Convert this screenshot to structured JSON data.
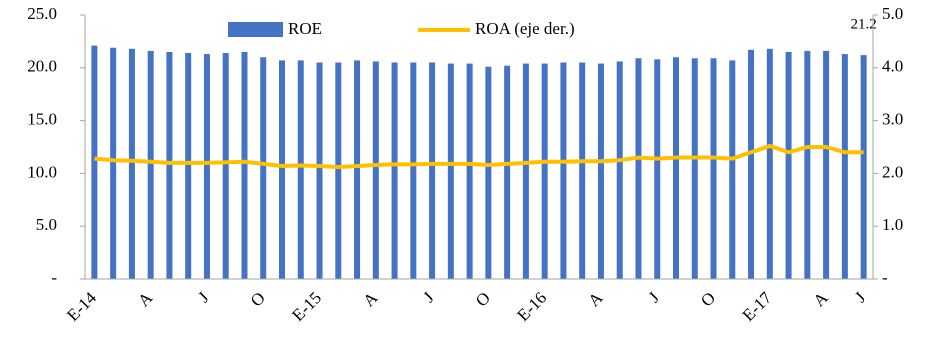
{
  "chart_data": {
    "type": "bar_line",
    "categories": [
      "E-14",
      null,
      null,
      "A",
      null,
      null,
      "J",
      null,
      null,
      "O",
      null,
      null,
      "E-15",
      null,
      null,
      "A",
      null,
      null,
      "J",
      null,
      null,
      "O",
      null,
      null,
      "E-16",
      null,
      null,
      "A",
      null,
      null,
      "J",
      null,
      null,
      "O",
      null,
      null,
      "E-17",
      null,
      null,
      "A",
      null,
      "J"
    ],
    "series": [
      {
        "name": "ROE",
        "color": "#4472c4",
        "type": "bar",
        "values": [
          22.1,
          21.9,
          21.8,
          21.6,
          21.5,
          21.4,
          21.3,
          21.4,
          21.5,
          21.0,
          20.7,
          20.7,
          20.5,
          20.5,
          20.7,
          20.6,
          20.5,
          20.5,
          20.5,
          20.4,
          20.4,
          20.1,
          20.2,
          20.4,
          20.4,
          20.5,
          20.5,
          20.4,
          20.6,
          20.9,
          20.8,
          21.0,
          20.9,
          20.9,
          20.7,
          21.7,
          21.8,
          21.5,
          21.6,
          21.6,
          21.3,
          21.2
        ],
        "value_labels": [
          null,
          null,
          null,
          null,
          null,
          null,
          null,
          null,
          null,
          null,
          null,
          null,
          null,
          null,
          null,
          null,
          null,
          null,
          null,
          null,
          null,
          null,
          null,
          null,
          null,
          null,
          null,
          null,
          null,
          null,
          null,
          null,
          null,
          null,
          null,
          null,
          null,
          null,
          null,
          null,
          null,
          "21.2"
        ]
      },
      {
        "name": "ROA (eje der.)",
        "color": "#ffc000",
        "type": "line",
        "axis": "y2",
        "values": [
          2.28,
          2.25,
          2.24,
          2.22,
          2.2,
          2.2,
          2.2,
          2.21,
          2.22,
          2.18,
          2.14,
          2.15,
          2.14,
          2.12,
          2.14,
          2.16,
          2.17,
          2.17,
          2.18,
          2.18,
          2.18,
          2.16,
          2.18,
          2.2,
          2.22,
          2.22,
          2.23,
          2.23,
          2.25,
          2.3,
          2.28,
          2.3,
          2.3,
          2.3,
          2.28,
          2.4,
          2.52,
          2.4,
          2.5,
          2.5,
          2.4,
          2.4
        ]
      }
    ],
    "ylim": [
      0,
      25
    ],
    "yticks": [
      {
        "value": 0,
        "label": "-"
      },
      {
        "value": 5,
        "label": "5.0"
      },
      {
        "value": 10,
        "label": "10.0"
      },
      {
        "value": 15,
        "label": "15.0"
      },
      {
        "value": 20,
        "label": "20.0"
      },
      {
        "value": 25,
        "label": "25.0"
      }
    ],
    "y2lim": [
      0,
      5
    ],
    "y2ticks": [
      {
        "value": 0,
        "label": "-"
      },
      {
        "value": 1,
        "label": "1.0"
      },
      {
        "value": 2,
        "label": "2.0"
      },
      {
        "value": 3,
        "label": "3.0"
      },
      {
        "value": 4,
        "label": "4.0"
      },
      {
        "value": 5,
        "label": "5.0"
      }
    ]
  }
}
